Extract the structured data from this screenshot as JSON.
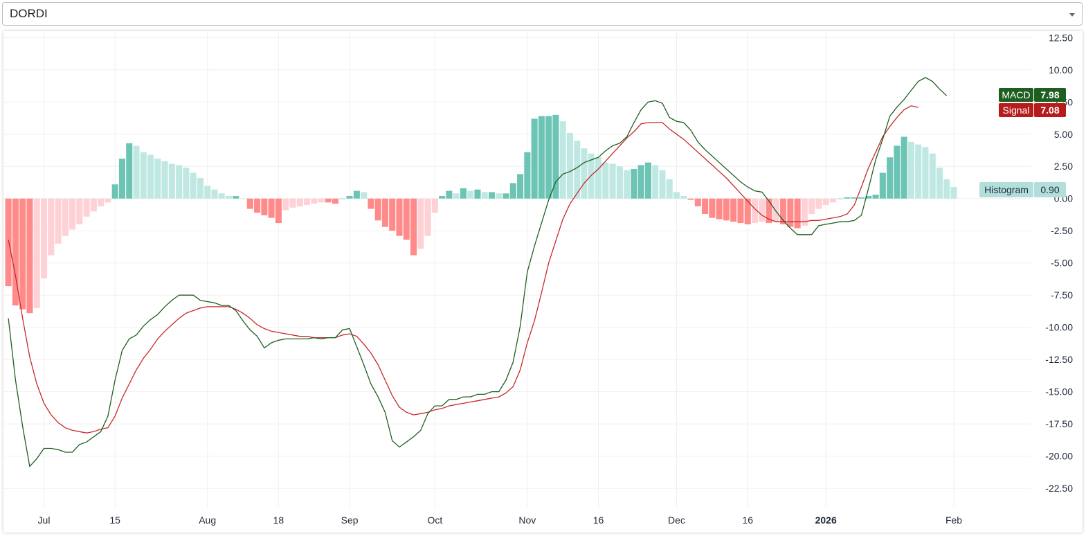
{
  "selector": {
    "value": "DORDI"
  },
  "legend": {
    "macd": {
      "label": "MACD",
      "value": "7.98",
      "color": "#1e5e20"
    },
    "signal": {
      "label": "Signal",
      "value": "7.08",
      "color": "#b71c1c"
    },
    "histogram": {
      "label": "Histogram",
      "value": "0.90",
      "color": "#b2dfdb"
    }
  },
  "colors": {
    "macd_line": "#1e5e20",
    "signal_line": "#c62828",
    "hist_pos_strong": "#6cc4b4",
    "hist_pos_weak": "#c0e8e2",
    "hist_neg_strong": "#ff8a8a",
    "hist_neg_weak": "#fed1d6",
    "grid": "#f0f0f0"
  },
  "chart_data": {
    "type": "line",
    "y_ticks": [
      "12.50",
      "10.00",
      "7.50",
      "5.00",
      "2.50",
      "0.00",
      "-2.50",
      "-5.00",
      "-7.50",
      "-10.00",
      "-12.50",
      "-15.00",
      "-17.50",
      "-20.00",
      "-22.50"
    ],
    "x_ticks": [
      {
        "label": "Jul",
        "bar": 5,
        "bold": false
      },
      {
        "label": "15",
        "bar": 15,
        "bold": false
      },
      {
        "label": "Aug",
        "bar": 28,
        "bold": false
      },
      {
        "label": "18",
        "bar": 38,
        "bold": false
      },
      {
        "label": "Sep",
        "bar": 48,
        "bold": false
      },
      {
        "label": "Oct",
        "bar": 60,
        "bold": false
      },
      {
        "label": "Nov",
        "bar": 73,
        "bold": false
      },
      {
        "label": "16",
        "bar": 83,
        "bold": false
      },
      {
        "label": "Dec",
        "bar": 94,
        "bold": false
      },
      {
        "label": "16",
        "bar": 104,
        "bold": false
      },
      {
        "label": "2026",
        "bar": 115,
        "bold": true
      },
      {
        "label": "Feb",
        "bar": 133,
        "bold": false
      }
    ],
    "ylim": [
      -24,
      13
    ],
    "histogram": [
      -6.8,
      -8.3,
      -8.6,
      -8.9,
      -8.5,
      -6.2,
      -4.4,
      -3.5,
      -2.9,
      -2.4,
      -2.0,
      -1.4,
      -1.0,
      -0.6,
      -0.3,
      1.1,
      3.1,
      4.3,
      4.1,
      3.6,
      3.4,
      3.1,
      2.9,
      2.7,
      2.6,
      2.4,
      2.0,
      1.6,
      1.0,
      0.7,
      0.4,
      0.2,
      0.2,
      0.0,
      -0.8,
      -1.1,
      -1.3,
      -1.5,
      -1.9,
      -0.9,
      -0.7,
      -0.6,
      -0.5,
      -0.4,
      -0.3,
      -0.3,
      -0.4,
      0.0,
      0.2,
      0.6,
      0.5,
      -0.8,
      -1.7,
      -2.2,
      -2.5,
      -2.9,
      -3.2,
      -4.4,
      -3.9,
      -2.9,
      -1.1,
      0.2,
      0.6,
      0.4,
      0.8,
      0.6,
      0.7,
      0.5,
      0.5,
      0.4,
      0.4,
      1.2,
      1.9,
      3.6,
      6.2,
      6.4,
      6.4,
      6.5,
      6.0,
      5.1,
      4.5,
      3.9,
      3.5,
      3.2,
      2.8,
      2.7,
      2.5,
      2.2,
      2.3,
      2.6,
      2.8,
      2.6,
      2.2,
      1.5,
      0.5,
      0.2,
      -0.1,
      -0.6,
      -1.2,
      -1.5,
      -1.6,
      -1.7,
      -1.8,
      -1.9,
      -2.0,
      -1.9,
      -1.8,
      -1.9,
      -1.8,
      -2.0,
      -2.2,
      -2.3,
      -2.1,
      -1.2,
      -0.8,
      -0.5,
      -0.3,
      0.0,
      0.1,
      0.1,
      0.1,
      0.2,
      0.3,
      2.0,
      3.2,
      4.1,
      4.8,
      4.4,
      4.2,
      4.0,
      3.5,
      2.4,
      1.5,
      0.9
    ],
    "series": [
      {
        "name": "MACD",
        "values": [
          -9.3,
          -14.1,
          -17.7,
          -20.8,
          -20.2,
          -19.4,
          -19.4,
          -19.5,
          -19.7,
          -19.7,
          -19.1,
          -18.9,
          -18.5,
          -18.1,
          -16.9,
          -14.1,
          -11.8,
          -10.9,
          -10.6,
          -9.9,
          -9.4,
          -9.0,
          -8.4,
          -7.9,
          -7.5,
          -7.5,
          -7.5,
          -7.9,
          -8.0,
          -8.1,
          -8.3,
          -8.3,
          -8.7,
          -9.5,
          -10.2,
          -10.7,
          -11.6,
          -11.2,
          -11.0,
          -10.9,
          -10.9,
          -10.9,
          -10.9,
          -10.8,
          -10.9,
          -10.8,
          -10.8,
          -10.2,
          -10.1,
          -11.5,
          -12.9,
          -14.4,
          -15.4,
          -16.6,
          -18.8,
          -19.3,
          -18.9,
          -18.5,
          -18.0,
          -16.7,
          -16.1,
          -16.1,
          -15.6,
          -15.6,
          -15.4,
          -15.4,
          -15.2,
          -15.2,
          -15.0,
          -15.0,
          -14.1,
          -12.7,
          -9.9,
          -5.7,
          -3.7,
          -1.9,
          -0.1,
          1.3,
          1.9,
          2.1,
          2.4,
          2.8,
          3.0,
          3.2,
          3.7,
          4.1,
          4.3,
          4.8,
          5.9,
          6.9,
          7.5,
          7.6,
          7.4,
          6.3,
          6.0,
          5.9,
          5.3,
          4.4,
          3.8,
          3.3,
          2.8,
          2.3,
          1.8,
          1.3,
          0.9,
          0.6,
          0.5,
          -0.2,
          -1.0,
          -1.7,
          -2.3,
          -2.8,
          -2.8,
          -2.8,
          -2.1,
          -2.0,
          -1.9,
          -1.8,
          -1.8,
          -1.7,
          -1.3,
          0.8,
          3.0,
          4.6,
          6.4,
          7.1,
          7.7,
          8.4,
          9.1,
          9.4,
          9.1,
          8.5,
          7.98
        ]
      },
      {
        "name": "Signal",
        "values": [
          -3.2,
          -6.0,
          -9.3,
          -12.3,
          -14.4,
          -15.9,
          -16.8,
          -17.4,
          -17.8,
          -18.0,
          -18.1,
          -18.2,
          -18.1,
          -17.9,
          -17.8,
          -16.9,
          -15.5,
          -14.4,
          -13.3,
          -12.4,
          -11.7,
          -10.9,
          -10.3,
          -9.8,
          -9.3,
          -8.9,
          -8.7,
          -8.5,
          -8.4,
          -8.4,
          -8.4,
          -8.4,
          -8.6,
          -8.9,
          -9.3,
          -9.8,
          -10.1,
          -10.3,
          -10.4,
          -10.5,
          -10.6,
          -10.7,
          -10.7,
          -10.8,
          -10.8,
          -10.8,
          -10.8,
          -10.6,
          -10.5,
          -10.7,
          -11.3,
          -12.0,
          -12.9,
          -14.1,
          -15.3,
          -16.2,
          -16.6,
          -16.8,
          -16.7,
          -16.6,
          -16.4,
          -16.3,
          -16.1,
          -16.0,
          -15.9,
          -15.8,
          -15.7,
          -15.6,
          -15.5,
          -15.4,
          -15.1,
          -14.6,
          -13.3,
          -11.2,
          -9.5,
          -7.3,
          -5.0,
          -3.3,
          -1.6,
          -0.4,
          0.4,
          1.2,
          1.8,
          2.3,
          2.9,
          3.5,
          4.1,
          4.7,
          5.2,
          5.8,
          5.9,
          5.9,
          5.9,
          5.4,
          5.0,
          4.6,
          4.1,
          3.6,
          3.1,
          2.6,
          2.1,
          1.6,
          1.0,
          0.4,
          -0.2,
          -0.8,
          -1.3,
          -1.6,
          -1.8,
          -1.8,
          -1.8,
          -1.8,
          -1.8,
          -1.7,
          -1.7,
          -1.6,
          -1.5,
          -1.4,
          -1.2,
          -0.5,
          0.9,
          2.4,
          3.6,
          4.8,
          5.6,
          6.3,
          6.9,
          7.2,
          7.08
        ]
      }
    ]
  }
}
